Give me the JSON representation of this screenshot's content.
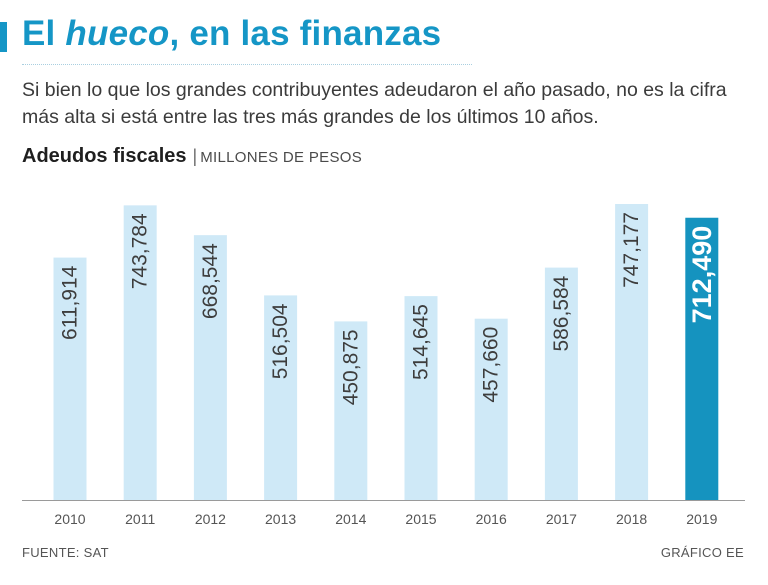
{
  "header": {
    "title_before": "El ",
    "title_italic": "hueco",
    "title_after": ", en las finanzas",
    "subtitle": "Si bien lo que los grandes contribuyentes adeudaron el año pasado, no es la cifra más alta si está entre las tres más grandes de los últimos 10 años."
  },
  "chart_heading": {
    "title": "Adeudos fiscales",
    "separator": "|",
    "units": "MILLONES DE PESOS"
  },
  "footer": {
    "source": "FUENTE: SAT",
    "credit": "GRÁFICO EE"
  },
  "colors": {
    "accent": "#1596c6",
    "bar": "#cfe9f7",
    "bar_highlight": "#1593bf",
    "axis": "#9a9a9a",
    "label": "#3d3d3d"
  },
  "chart_data": {
    "type": "bar",
    "categories": [
      "2010",
      "2011",
      "2012",
      "2013",
      "2014",
      "2015",
      "2016",
      "2017",
      "2018",
      "2019"
    ],
    "values": [
      611914,
      743784,
      668544,
      516504,
      450875,
      514645,
      457660,
      586584,
      747177,
      712490
    ],
    "value_labels": [
      "611,914",
      "743,784",
      "668,544",
      "516,504",
      "450,875",
      "514,645",
      "457,660",
      "586,584",
      "747,177",
      "712,490"
    ],
    "highlight_index": 9,
    "ylim": [
      0,
      747177
    ],
    "grid": false,
    "legend": "none"
  }
}
